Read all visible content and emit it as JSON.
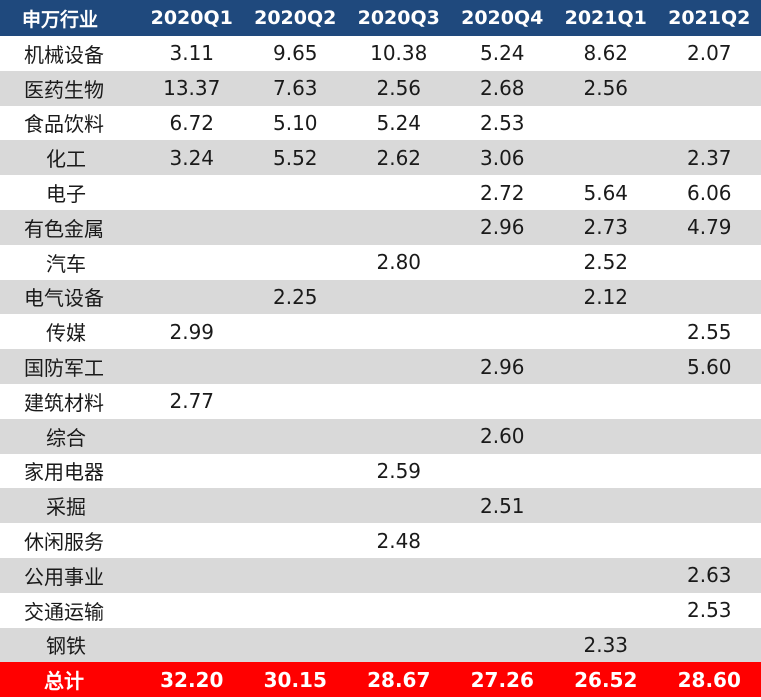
{
  "chart_data": {
    "type": "table",
    "header": [
      "申万行业",
      "2020Q1",
      "2020Q2",
      "2020Q3",
      "2020Q4",
      "2021Q1",
      "2021Q2"
    ],
    "rows": [
      {
        "name": "机械设备",
        "values": [
          "3.11",
          "9.65",
          "10.38",
          "5.24",
          "8.62",
          "2.07"
        ]
      },
      {
        "name": "医药生物",
        "values": [
          "13.37",
          "7.63",
          "2.56",
          "2.68",
          "2.56",
          ""
        ]
      },
      {
        "name": "食品饮料",
        "values": [
          "6.72",
          "5.10",
          "5.24",
          "2.53",
          "",
          ""
        ]
      },
      {
        "name": "化工",
        "values": [
          "3.24",
          "5.52",
          "2.62",
          "3.06",
          "",
          "2.37"
        ]
      },
      {
        "name": "电子",
        "values": [
          "",
          "",
          "",
          "2.72",
          "5.64",
          "6.06"
        ]
      },
      {
        "name": "有色金属",
        "values": [
          "",
          "",
          "",
          "2.96",
          "2.73",
          "4.79"
        ]
      },
      {
        "name": "汽车",
        "values": [
          "",
          "",
          "2.80",
          "",
          "2.52",
          ""
        ]
      },
      {
        "name": "电气设备",
        "values": [
          "",
          "2.25",
          "",
          "",
          "2.12",
          ""
        ]
      },
      {
        "name": "传媒",
        "values": [
          "2.99",
          "",
          "",
          "",
          "",
          "2.55"
        ]
      },
      {
        "name": "国防军工",
        "values": [
          "",
          "",
          "",
          "2.96",
          "",
          "5.60"
        ]
      },
      {
        "name": "建筑材料",
        "values": [
          "2.77",
          "",
          "",
          "",
          "",
          ""
        ]
      },
      {
        "name": "综合",
        "values": [
          "",
          "",
          "",
          "2.60",
          "",
          ""
        ]
      },
      {
        "name": "家用电器",
        "values": [
          "",
          "",
          "2.59",
          "",
          "",
          ""
        ]
      },
      {
        "name": "采掘",
        "values": [
          "",
          "",
          "",
          "2.51",
          "",
          ""
        ]
      },
      {
        "name": "休闲服务",
        "values": [
          "",
          "",
          "2.48",
          "",
          "",
          ""
        ]
      },
      {
        "name": "公用事业",
        "values": [
          "",
          "",
          "",
          "",
          "",
          "2.63"
        ]
      },
      {
        "name": "交通运输",
        "values": [
          "",
          "",
          "",
          "",
          "",
          "2.53"
        ]
      },
      {
        "name": "钢铁",
        "values": [
          "",
          "",
          "",
          "",
          "2.33",
          ""
        ]
      }
    ],
    "total": {
      "name": "总计",
      "values": [
        "32.20",
        "30.15",
        "28.67",
        "27.26",
        "26.52",
        "28.60"
      ]
    },
    "colors": {
      "header_bg": "#1f497d",
      "header_text": "#ffffff",
      "stripe": "#d9d9d9",
      "total_bg": "#ff0000",
      "total_text": "#ffffff"
    }
  }
}
